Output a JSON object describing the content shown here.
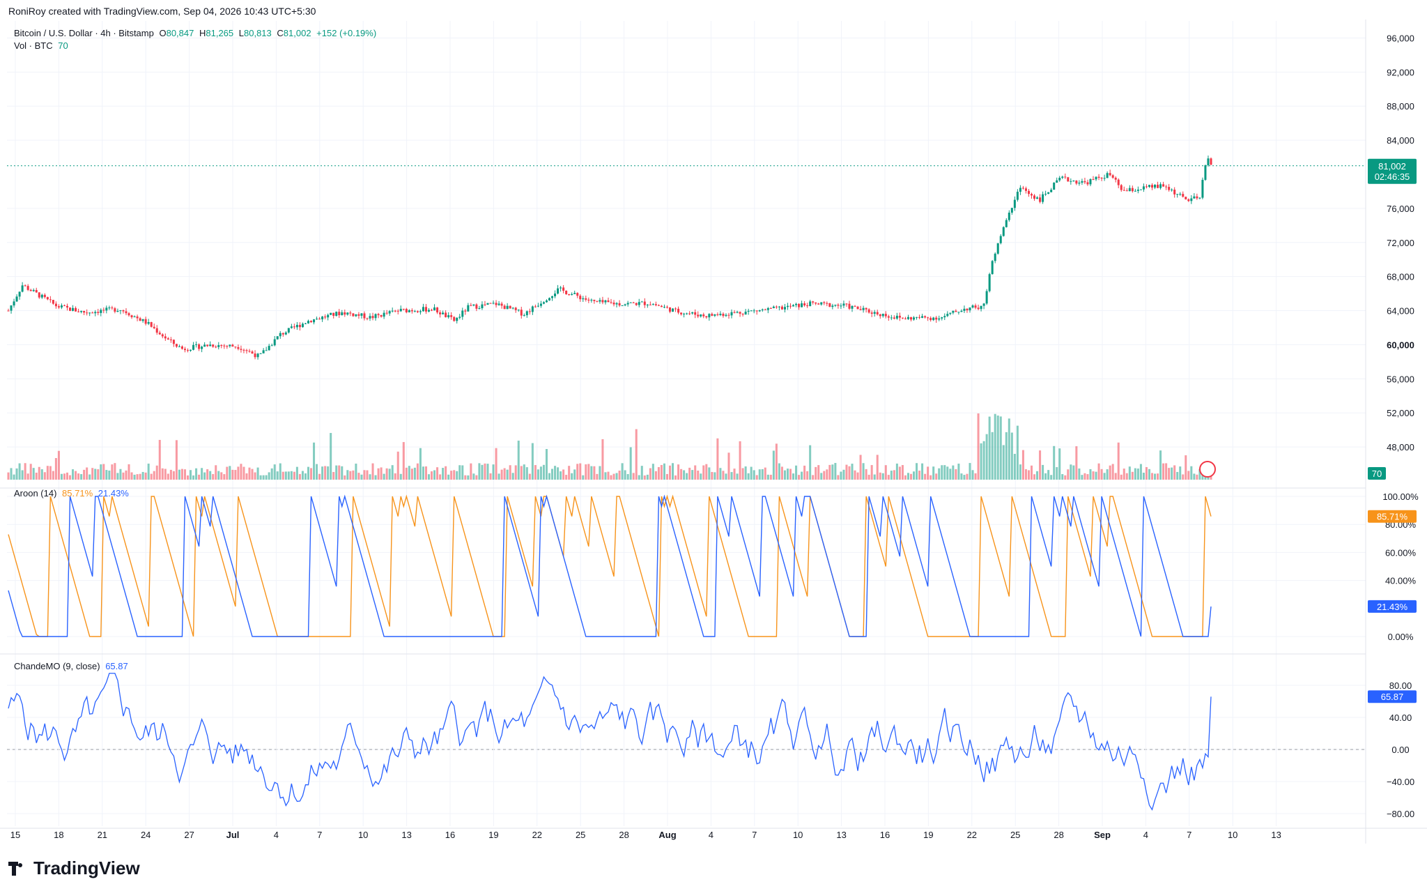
{
  "header": {
    "created_by": "RoniRoy created with TradingView.com, Sep 04, 2026 10:43 UTC+5:30"
  },
  "main_legend": {
    "symbol": "Bitcoin / U.S. Dollar · 4h · Bitstamp",
    "o_label": "O",
    "o_value": "80,847",
    "h_label": "H",
    "h_value": "81,265",
    "l_label": "L",
    "l_value": "80,813",
    "c_label": "C",
    "c_value": "81,002",
    "change": "+152 (+0.19%)",
    "vol_label": "Vol · BTC",
    "vol_value": "70"
  },
  "price_axis": {
    "ticks": [
      "96,000",
      "92,000",
      "88,000",
      "84,000",
      "76,000",
      "72,000",
      "68,000",
      "64,000",
      "60,000",
      "56,000",
      "52,000",
      "48,000"
    ],
    "current_price": "81,002",
    "countdown": "02:46:35",
    "vol_badge": "70"
  },
  "aroon": {
    "label": "Aroon (14)",
    "up_value": "85.71%",
    "down_value": "21.43%",
    "ticks": [
      "100.00%",
      "80.00%",
      "60.00%",
      "40.00%",
      "0.00%"
    ],
    "badge_up": "85.71%",
    "badge_down": "21.43%"
  },
  "cmo": {
    "label": "ChandeMO (9, close)",
    "value": "65.87",
    "ticks": [
      "80.00",
      "40.00",
      "0.00",
      "−40.00",
      "−80.00"
    ],
    "badge": "65.87"
  },
  "time_axis": {
    "labels": [
      "15",
      "18",
      "21",
      "24",
      "27",
      "Jul",
      "4",
      "7",
      "10",
      "13",
      "16",
      "19",
      "22",
      "25",
      "28",
      "Aug",
      "4",
      "7",
      "10",
      "13",
      "16",
      "19",
      "22",
      "25",
      "28",
      "Sep",
      "4",
      "7",
      "10",
      "13"
    ]
  },
  "footer": {
    "brand": "TradingView"
  },
  "colors": {
    "up": "#089981",
    "down": "#f23645",
    "aroon_up": "#f7931a",
    "aroon_down": "#2962ff",
    "cmo": "#2962ff",
    "grid": "#f0f3fa"
  },
  "chart_data": [
    {
      "type": "candlestick",
      "title": "Bitcoin / U.S. Dollar · 4h · Bitstamp",
      "x": [
        "15",
        "18",
        "21",
        "24",
        "27",
        "Jul",
        "4",
        "7",
        "10",
        "13",
        "16",
        "19",
        "22",
        "25",
        "28",
        "Aug",
        "4",
        "7",
        "10",
        "13",
        "16",
        "19",
        "22",
        "25",
        "28",
        "Sep",
        "4"
      ],
      "close_approx": [
        64000,
        66500,
        64500,
        62500,
        60000,
        60500,
        61000,
        62800,
        64200,
        64200,
        63500,
        64500,
        64800,
        66500,
        64800,
        64500,
        63200,
        64200,
        64800,
        64300,
        63400,
        65000,
        79000,
        79600,
        78800,
        78300,
        81002
      ],
      "ylim": [
        44000,
        98000
      ],
      "current": 81002
    },
    {
      "type": "bar",
      "title": "Vol · BTC",
      "current": 70
    },
    {
      "type": "line",
      "title": "Aroon (14)",
      "series": [
        {
          "name": "Aroon Up",
          "current": 85.71
        },
        {
          "name": "Aroon Down",
          "current": 21.43
        }
      ],
      "ylim": [
        0,
        100
      ]
    },
    {
      "type": "line",
      "title": "ChandeMO (9, close)",
      "current": 65.87,
      "ylim": [
        -90,
        90
      ]
    }
  ]
}
